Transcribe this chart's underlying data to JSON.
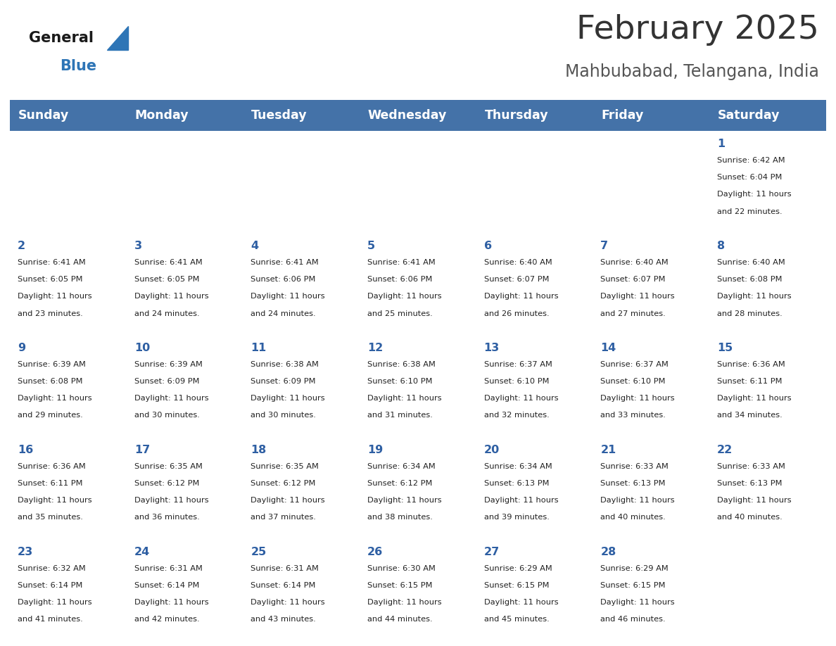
{
  "title": "February 2025",
  "subtitle": "Mahbubabad, Telangana, India",
  "header_color": "#4472A8",
  "header_text_color": "#FFFFFF",
  "row_bg_colors": [
    "#F2F2F2",
    "#FFFFFF"
  ],
  "divider_color": "#4472A8",
  "days_of_week": [
    "Sunday",
    "Monday",
    "Tuesday",
    "Wednesday",
    "Thursday",
    "Friday",
    "Saturday"
  ],
  "title_color": "#333333",
  "subtitle_color": "#555555",
  "day_number_color": "#2E5FA3",
  "text_color": "#222222",
  "calendar_data": [
    [
      {
        "day": "",
        "sunrise": "",
        "sunset": "",
        "daylight_h": "",
        "daylight_m": ""
      },
      {
        "day": "",
        "sunrise": "",
        "sunset": "",
        "daylight_h": "",
        "daylight_m": ""
      },
      {
        "day": "",
        "sunrise": "",
        "sunset": "",
        "daylight_h": "",
        "daylight_m": ""
      },
      {
        "day": "",
        "sunrise": "",
        "sunset": "",
        "daylight_h": "",
        "daylight_m": ""
      },
      {
        "day": "",
        "sunrise": "",
        "sunset": "",
        "daylight_h": "",
        "daylight_m": ""
      },
      {
        "day": "",
        "sunrise": "",
        "sunset": "",
        "daylight_h": "",
        "daylight_m": ""
      },
      {
        "day": "1",
        "sunrise": "6:42 AM",
        "sunset": "6:04 PM",
        "daylight_h": "11 hours",
        "daylight_m": "and 22 minutes."
      }
    ],
    [
      {
        "day": "2",
        "sunrise": "6:41 AM",
        "sunset": "6:05 PM",
        "daylight_h": "11 hours",
        "daylight_m": "and 23 minutes."
      },
      {
        "day": "3",
        "sunrise": "6:41 AM",
        "sunset": "6:05 PM",
        "daylight_h": "11 hours",
        "daylight_m": "and 24 minutes."
      },
      {
        "day": "4",
        "sunrise": "6:41 AM",
        "sunset": "6:06 PM",
        "daylight_h": "11 hours",
        "daylight_m": "and 24 minutes."
      },
      {
        "day": "5",
        "sunrise": "6:41 AM",
        "sunset": "6:06 PM",
        "daylight_h": "11 hours",
        "daylight_m": "and 25 minutes."
      },
      {
        "day": "6",
        "sunrise": "6:40 AM",
        "sunset": "6:07 PM",
        "daylight_h": "11 hours",
        "daylight_m": "and 26 minutes."
      },
      {
        "day": "7",
        "sunrise": "6:40 AM",
        "sunset": "6:07 PM",
        "daylight_h": "11 hours",
        "daylight_m": "and 27 minutes."
      },
      {
        "day": "8",
        "sunrise": "6:40 AM",
        "sunset": "6:08 PM",
        "daylight_h": "11 hours",
        "daylight_m": "and 28 minutes."
      }
    ],
    [
      {
        "day": "9",
        "sunrise": "6:39 AM",
        "sunset": "6:08 PM",
        "daylight_h": "11 hours",
        "daylight_m": "and 29 minutes."
      },
      {
        "day": "10",
        "sunrise": "6:39 AM",
        "sunset": "6:09 PM",
        "daylight_h": "11 hours",
        "daylight_m": "and 30 minutes."
      },
      {
        "day": "11",
        "sunrise": "6:38 AM",
        "sunset": "6:09 PM",
        "daylight_h": "11 hours",
        "daylight_m": "and 30 minutes."
      },
      {
        "day": "12",
        "sunrise": "6:38 AM",
        "sunset": "6:10 PM",
        "daylight_h": "11 hours",
        "daylight_m": "and 31 minutes."
      },
      {
        "day": "13",
        "sunrise": "6:37 AM",
        "sunset": "6:10 PM",
        "daylight_h": "11 hours",
        "daylight_m": "and 32 minutes."
      },
      {
        "day": "14",
        "sunrise": "6:37 AM",
        "sunset": "6:10 PM",
        "daylight_h": "11 hours",
        "daylight_m": "and 33 minutes."
      },
      {
        "day": "15",
        "sunrise": "6:36 AM",
        "sunset": "6:11 PM",
        "daylight_h": "11 hours",
        "daylight_m": "and 34 minutes."
      }
    ],
    [
      {
        "day": "16",
        "sunrise": "6:36 AM",
        "sunset": "6:11 PM",
        "daylight_h": "11 hours",
        "daylight_m": "and 35 minutes."
      },
      {
        "day": "17",
        "sunrise": "6:35 AM",
        "sunset": "6:12 PM",
        "daylight_h": "11 hours",
        "daylight_m": "and 36 minutes."
      },
      {
        "day": "18",
        "sunrise": "6:35 AM",
        "sunset": "6:12 PM",
        "daylight_h": "11 hours",
        "daylight_m": "and 37 minutes."
      },
      {
        "day": "19",
        "sunrise": "6:34 AM",
        "sunset": "6:12 PM",
        "daylight_h": "11 hours",
        "daylight_m": "and 38 minutes."
      },
      {
        "day": "20",
        "sunrise": "6:34 AM",
        "sunset": "6:13 PM",
        "daylight_h": "11 hours",
        "daylight_m": "and 39 minutes."
      },
      {
        "day": "21",
        "sunrise": "6:33 AM",
        "sunset": "6:13 PM",
        "daylight_h": "11 hours",
        "daylight_m": "and 40 minutes."
      },
      {
        "day": "22",
        "sunrise": "6:33 AM",
        "sunset": "6:13 PM",
        "daylight_h": "11 hours",
        "daylight_m": "and 40 minutes."
      }
    ],
    [
      {
        "day": "23",
        "sunrise": "6:32 AM",
        "sunset": "6:14 PM",
        "daylight_h": "11 hours",
        "daylight_m": "and 41 minutes."
      },
      {
        "day": "24",
        "sunrise": "6:31 AM",
        "sunset": "6:14 PM",
        "daylight_h": "11 hours",
        "daylight_m": "and 42 minutes."
      },
      {
        "day": "25",
        "sunrise": "6:31 AM",
        "sunset": "6:14 PM",
        "daylight_h": "11 hours",
        "daylight_m": "and 43 minutes."
      },
      {
        "day": "26",
        "sunrise": "6:30 AM",
        "sunset": "6:15 PM",
        "daylight_h": "11 hours",
        "daylight_m": "and 44 minutes."
      },
      {
        "day": "27",
        "sunrise": "6:29 AM",
        "sunset": "6:15 PM",
        "daylight_h": "11 hours",
        "daylight_m": "and 45 minutes."
      },
      {
        "day": "28",
        "sunrise": "6:29 AM",
        "sunset": "6:15 PM",
        "daylight_h": "11 hours",
        "daylight_m": "and 46 minutes."
      },
      {
        "day": "",
        "sunrise": "",
        "sunset": "",
        "daylight_h": "",
        "daylight_m": ""
      }
    ]
  ]
}
